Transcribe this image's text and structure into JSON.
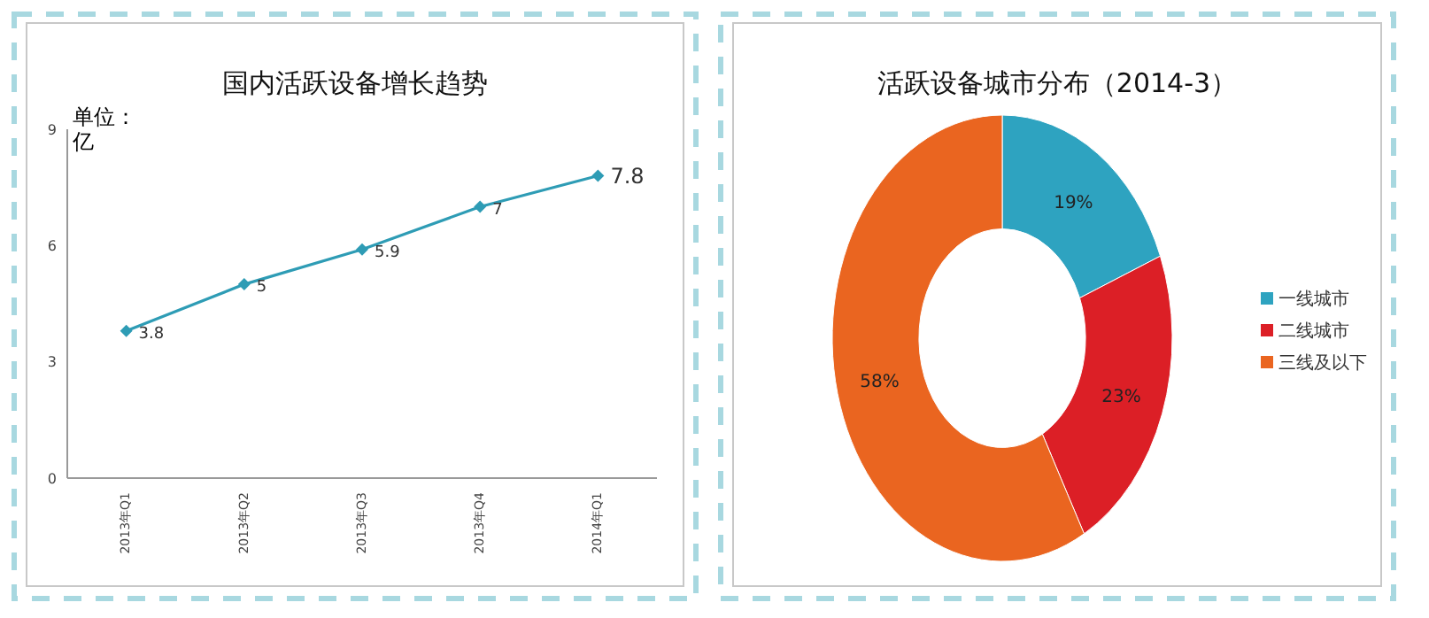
{
  "chart_data": [
    {
      "type": "line",
      "title": "国内活跃设备增长趋势",
      "ylabel": "单位：亿",
      "categories": [
        "2013年Q1",
        "2013年Q2",
        "2013年Q3",
        "2013年Q4",
        "2014年Q1"
      ],
      "series": [
        {
          "color": "#2e9cb5",
          "values": [
            3.8,
            5,
            5.9,
            7,
            7.8
          ]
        }
      ],
      "ylim": [
        0,
        9
      ],
      "yticks": [
        0,
        3,
        6,
        9
      ],
      "marker": "diamond",
      "data_labels": true,
      "grid": false,
      "legend": false
    },
    {
      "type": "donut",
      "title": "活跃设备城市分布（2014-3）",
      "categories": [
        "一线城市",
        "二线城市",
        "三线及以下"
      ],
      "values": [
        19,
        23,
        58
      ],
      "colors": [
        "#2ea3c0",
        "#dc1f26",
        "#ea6520"
      ],
      "data_labels": true,
      "value_labels": [
        "19%",
        "23%",
        "58%"
      ],
      "legend": "right"
    }
  ]
}
